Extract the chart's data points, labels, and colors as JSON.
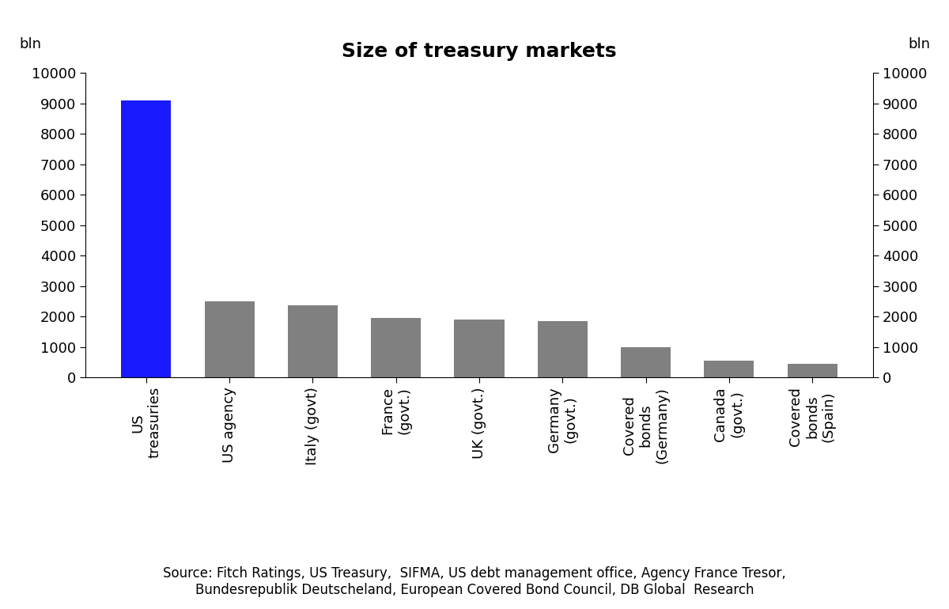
{
  "title": "Size of treasury markets",
  "ylabel_left": "bln",
  "ylabel_right": "bln",
  "categories": [
    "US\ntreasuries",
    "US agency",
    "Italy (govt)",
    "France\n(govt.)",
    "UK (govt.)",
    "Germany\n(govt.)",
    "Covered\nbonds\n(Germany)",
    "Canada\n(govt.)",
    "Covered\nbonds\n(Spain)"
  ],
  "values": [
    9100,
    2500,
    2380,
    1950,
    1900,
    1850,
    1000,
    560,
    460
  ],
  "bar_colors": [
    "#1a1aff",
    "#808080",
    "#808080",
    "#808080",
    "#808080",
    "#808080",
    "#808080",
    "#808080",
    "#808080"
  ],
  "ylim": [
    0,
    10000
  ],
  "yticks": [
    0,
    1000,
    2000,
    3000,
    4000,
    5000,
    6000,
    7000,
    8000,
    9000,
    10000
  ],
  "source_text": "Source: Fitch Ratings, US Treasury,  SIFMA, US debt management office, Agency France Tresor,\nBundesrepublik Deutscheland, European Covered Bond Council, DB Global  Research",
  "title_fontsize": 18,
  "tick_fontsize": 13,
  "label_fontsize": 13,
  "source_fontsize": 12,
  "background_color": "#ffffff",
  "bar_width": 0.6
}
